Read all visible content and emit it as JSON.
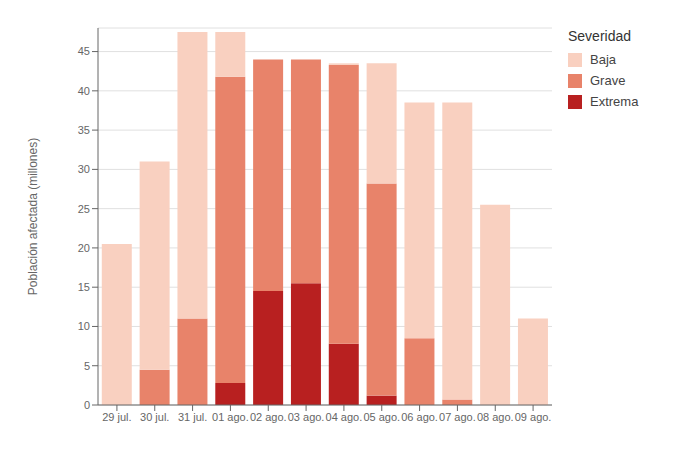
{
  "chart_data": {
    "type": "bar",
    "stacked": true,
    "ylabel": "Población afectada (millones)",
    "legend_title": "Severidad",
    "legend": "right",
    "grid": true,
    "categories": [
      "29 jul.",
      "30 jul.",
      "31 jul.",
      "01 ago.",
      "02 ago.",
      "03 ago.",
      "04 ago.",
      "05 ago.",
      "06 ago.",
      "07 ago.",
      "08 ago.",
      "09 ago."
    ],
    "series": [
      {
        "name": "Extrema",
        "color": "#b82020",
        "values": [
          0.0,
          0.0,
          0.0,
          2.8,
          14.5,
          15.5,
          7.8,
          1.2,
          0.0,
          0.0,
          0.0,
          0.0
        ]
      },
      {
        "name": "Grave",
        "color": "#e8836a",
        "values": [
          0.0,
          4.5,
          11.0,
          39.0,
          29.5,
          28.5,
          35.5,
          27.0,
          8.5,
          0.7,
          0.0,
          0.0
        ]
      },
      {
        "name": "Baja",
        "color": "#f9d0c0",
        "values": [
          20.5,
          26.5,
          36.5,
          5.7,
          0.0,
          0.0,
          0.2,
          15.3,
          30.0,
          37.8,
          25.5,
          11.0
        ]
      }
    ],
    "ylim": [
      0,
      48
    ],
    "yticks": [
      0,
      5,
      10,
      15,
      20,
      25,
      30,
      35,
      40,
      45
    ]
  }
}
